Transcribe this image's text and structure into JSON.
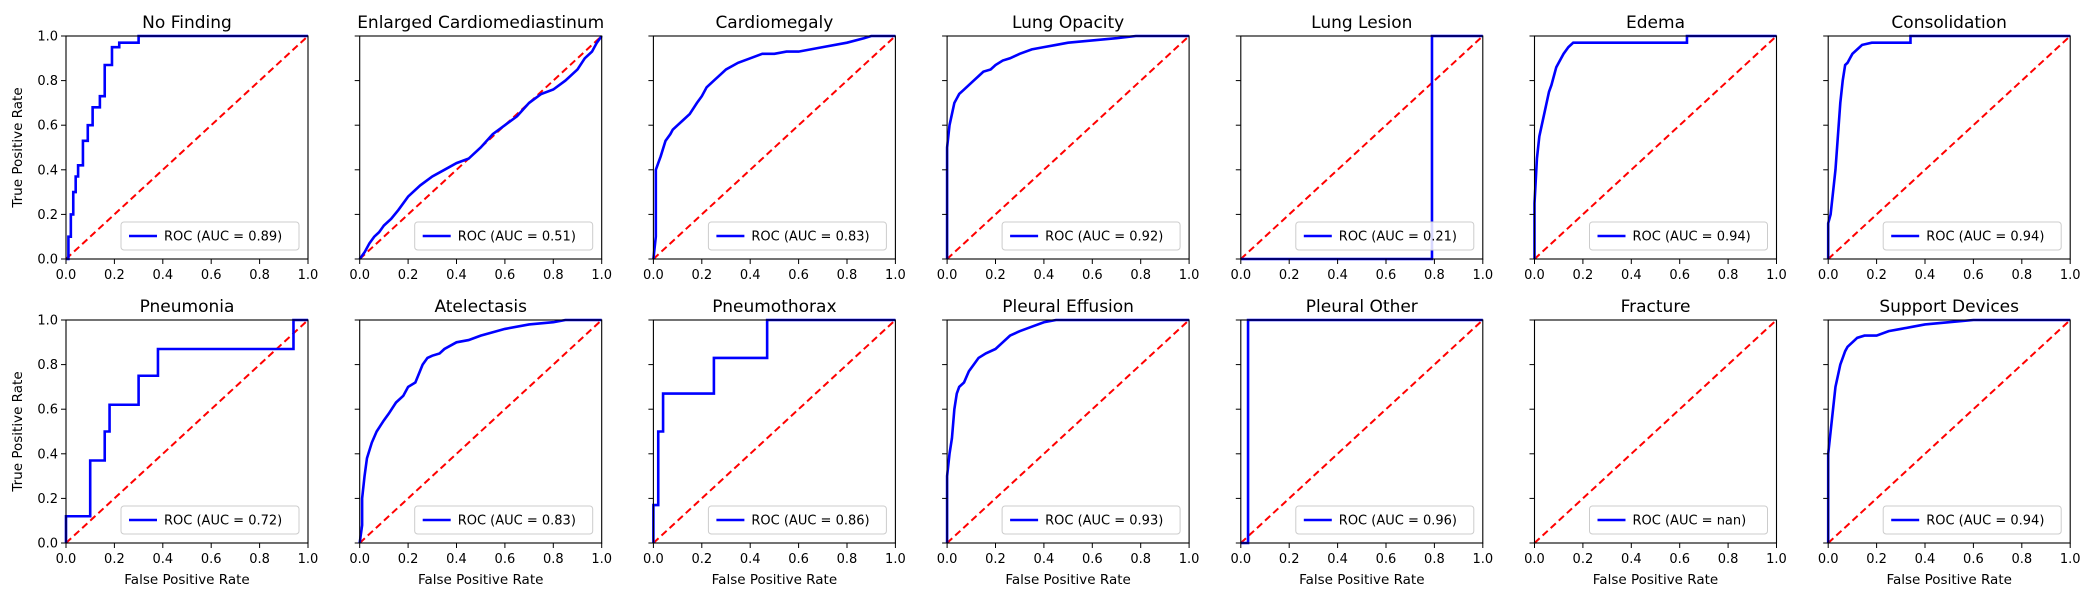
{
  "figure": {
    "xlabel": "False Positive Rate",
    "ylabel": "True Positive Rate",
    "x_ticks": [
      "0.0",
      "0.2",
      "0.4",
      "0.6",
      "0.8",
      "1.0"
    ],
    "y_ticks": [
      "0.0",
      "0.2",
      "0.4",
      "0.6",
      "0.8",
      "1.0"
    ],
    "colors": {
      "roc": "#0000ff",
      "chance": "#ff0000",
      "axes": "#000000"
    }
  },
  "chart_data": [
    {
      "type": "line",
      "title": "No Finding",
      "legend": "ROC (AUC = 0.89)",
      "xlim": [
        0,
        1
      ],
      "ylim": [
        0,
        1
      ],
      "grid": false,
      "legend_position": "lower-right",
      "series": [
        {
          "name": "ROC (AUC = 0.89)",
          "x": [
            0,
            0.01,
            0.01,
            0.02,
            0.02,
            0.03,
            0.03,
            0.04,
            0.04,
            0.05,
            0.05,
            0.07,
            0.07,
            0.09,
            0.09,
            0.11,
            0.11,
            0.14,
            0.14,
            0.16,
            0.16,
            0.19,
            0.19,
            0.22,
            0.22,
            0.3,
            0.3,
            1
          ],
          "y": [
            0,
            0,
            0.1,
            0.1,
            0.2,
            0.2,
            0.3,
            0.3,
            0.37,
            0.37,
            0.42,
            0.42,
            0.53,
            0.53,
            0.6,
            0.6,
            0.68,
            0.68,
            0.73,
            0.73,
            0.87,
            0.87,
            0.95,
            0.95,
            0.97,
            0.97,
            1,
            1
          ]
        },
        {
          "name": "chance",
          "x": [
            0,
            1
          ],
          "y": [
            0,
            1
          ]
        }
      ]
    },
    {
      "type": "line",
      "title": "Enlarged Cardiomediastinum",
      "legend": "ROC (AUC = 0.51)",
      "xlim": [
        0,
        1
      ],
      "ylim": [
        0,
        1
      ],
      "grid": false,
      "legend_position": "lower-right",
      "series": [
        {
          "name": "ROC (AUC = 0.51)",
          "x": [
            0,
            0.02,
            0.04,
            0.06,
            0.08,
            0.1,
            0.13,
            0.16,
            0.2,
            0.25,
            0.3,
            0.35,
            0.4,
            0.45,
            0.5,
            0.55,
            0.6,
            0.65,
            0.7,
            0.75,
            0.8,
            0.85,
            0.9,
            0.93,
            0.96,
            0.98,
            1
          ],
          "y": [
            0,
            0.03,
            0.07,
            0.1,
            0.12,
            0.15,
            0.18,
            0.22,
            0.28,
            0.33,
            0.37,
            0.4,
            0.43,
            0.45,
            0.5,
            0.56,
            0.6,
            0.64,
            0.7,
            0.74,
            0.76,
            0.8,
            0.85,
            0.9,
            0.93,
            0.97,
            1
          ]
        },
        {
          "name": "chance",
          "x": [
            0,
            1
          ],
          "y": [
            0,
            1
          ]
        }
      ]
    },
    {
      "type": "line",
      "title": "Cardiomegaly",
      "legend": "ROC (AUC = 0.83)",
      "xlim": [
        0,
        1
      ],
      "ylim": [
        0,
        1
      ],
      "grid": false,
      "legend_position": "lower-right",
      "series": [
        {
          "name": "ROC (AUC = 0.83)",
          "x": [
            0,
            0.01,
            0.01,
            0.02,
            0.03,
            0.05,
            0.07,
            0.08,
            0.1,
            0.12,
            0.15,
            0.18,
            0.2,
            0.22,
            0.25,
            0.28,
            0.3,
            0.35,
            0.4,
            0.45,
            0.5,
            0.55,
            0.6,
            0.7,
            0.8,
            0.87,
            0.9,
            1
          ],
          "y": [
            0,
            0.1,
            0.4,
            0.43,
            0.46,
            0.53,
            0.56,
            0.58,
            0.6,
            0.62,
            0.65,
            0.7,
            0.73,
            0.77,
            0.8,
            0.83,
            0.85,
            0.88,
            0.9,
            0.92,
            0.92,
            0.93,
            0.93,
            0.95,
            0.97,
            0.99,
            1,
            1
          ]
        },
        {
          "name": "chance",
          "x": [
            0,
            1
          ],
          "y": [
            0,
            1
          ]
        }
      ]
    },
    {
      "type": "line",
      "title": "Lung Opacity",
      "legend": "ROC (AUC = 0.92)",
      "xlim": [
        0,
        1
      ],
      "ylim": [
        0,
        1
      ],
      "grid": false,
      "legend_position": "lower-right",
      "series": [
        {
          "name": "ROC (AUC = 0.92)",
          "x": [
            0,
            0,
            0.01,
            0.02,
            0.03,
            0.04,
            0.05,
            0.07,
            0.09,
            0.11,
            0.13,
            0.15,
            0.18,
            0.2,
            0.23,
            0.26,
            0.3,
            0.35,
            0.4,
            0.45,
            0.5,
            0.6,
            0.7,
            0.78,
            1
          ],
          "y": [
            0,
            0.5,
            0.6,
            0.65,
            0.7,
            0.72,
            0.74,
            0.76,
            0.78,
            0.8,
            0.82,
            0.84,
            0.85,
            0.87,
            0.89,
            0.9,
            0.92,
            0.94,
            0.95,
            0.96,
            0.97,
            0.98,
            0.99,
            1,
            1
          ]
        },
        {
          "name": "chance",
          "x": [
            0,
            1
          ],
          "y": [
            0,
            1
          ]
        }
      ]
    },
    {
      "type": "line",
      "title": "Lung Lesion",
      "legend": "ROC (AUC = 0.21)",
      "xlim": [
        0,
        1
      ],
      "ylim": [
        0,
        1
      ],
      "grid": false,
      "legend_position": "lower-right",
      "series": [
        {
          "name": "ROC (AUC = 0.21)",
          "x": [
            0,
            0.79,
            0.79,
            1
          ],
          "y": [
            0,
            0,
            1,
            1
          ]
        },
        {
          "name": "chance",
          "x": [
            0,
            1
          ],
          "y": [
            0,
            1
          ]
        }
      ]
    },
    {
      "type": "line",
      "title": "Edema",
      "legend": "ROC (AUC = 0.94)",
      "xlim": [
        0,
        1
      ],
      "ylim": [
        0,
        1
      ],
      "grid": false,
      "legend_position": "lower-right",
      "series": [
        {
          "name": "ROC (AUC = 0.94)",
          "x": [
            0,
            0,
            0.01,
            0.02,
            0.03,
            0.04,
            0.05,
            0.06,
            0.07,
            0.08,
            0.09,
            0.1,
            0.12,
            0.14,
            0.16,
            0.2,
            0.3,
            0.4,
            0.63,
            0.63,
            1
          ],
          "y": [
            0,
            0.25,
            0.45,
            0.55,
            0.6,
            0.65,
            0.7,
            0.75,
            0.78,
            0.82,
            0.86,
            0.88,
            0.92,
            0.95,
            0.97,
            0.97,
            0.97,
            0.97,
            0.97,
            1,
            1
          ]
        },
        {
          "name": "chance",
          "x": [
            0,
            1
          ],
          "y": [
            0,
            1
          ]
        }
      ]
    },
    {
      "type": "line",
      "title": "Consolidation",
      "legend": "ROC (AUC = 0.94)",
      "xlim": [
        0,
        1
      ],
      "ylim": [
        0,
        1
      ],
      "grid": false,
      "legend_position": "lower-right",
      "series": [
        {
          "name": "ROC (AUC = 0.94)",
          "x": [
            0,
            0,
            0.01,
            0.02,
            0.03,
            0.04,
            0.05,
            0.06,
            0.07,
            0.08,
            0.09,
            0.1,
            0.12,
            0.14,
            0.18,
            0.22,
            0.3,
            0.34,
            0.34,
            1
          ],
          "y": [
            0,
            0.16,
            0.2,
            0.3,
            0.4,
            0.55,
            0.7,
            0.8,
            0.87,
            0.88,
            0.9,
            0.92,
            0.94,
            0.96,
            0.97,
            0.97,
            0.97,
            0.97,
            1,
            1
          ]
        },
        {
          "name": "chance",
          "x": [
            0,
            1
          ],
          "y": [
            0,
            1
          ]
        }
      ]
    },
    {
      "type": "line",
      "title": "Pneumonia",
      "legend": "ROC (AUC = 0.72)",
      "xlim": [
        0,
        1
      ],
      "ylim": [
        0,
        1
      ],
      "grid": false,
      "legend_position": "lower-right",
      "series": [
        {
          "name": "ROC (AUC = 0.72)",
          "x": [
            0,
            0,
            0.1,
            0.1,
            0.16,
            0.16,
            0.18,
            0.18,
            0.3,
            0.3,
            0.38,
            0.38,
            0.94,
            0.94,
            1
          ],
          "y": [
            0,
            0.12,
            0.12,
            0.37,
            0.37,
            0.5,
            0.5,
            0.62,
            0.62,
            0.75,
            0.75,
            0.87,
            0.87,
            1,
            1
          ]
        },
        {
          "name": "chance",
          "x": [
            0,
            1
          ],
          "y": [
            0,
            1
          ]
        }
      ]
    },
    {
      "type": "line",
      "title": "Atelectasis",
      "legend": "ROC (AUC = 0.83)",
      "xlim": [
        0,
        1
      ],
      "ylim": [
        0,
        1
      ],
      "grid": false,
      "legend_position": "lower-right",
      "series": [
        {
          "name": "ROC (AUC = 0.83)",
          "x": [
            0,
            0.01,
            0.01,
            0.02,
            0.03,
            0.05,
            0.07,
            0.1,
            0.12,
            0.15,
            0.18,
            0.2,
            0.23,
            0.26,
            0.28,
            0.3,
            0.33,
            0.35,
            0.4,
            0.45,
            0.5,
            0.6,
            0.7,
            0.8,
            0.85,
            1
          ],
          "y": [
            0,
            0.08,
            0.2,
            0.3,
            0.38,
            0.45,
            0.5,
            0.55,
            0.58,
            0.63,
            0.66,
            0.7,
            0.72,
            0.8,
            0.83,
            0.84,
            0.85,
            0.87,
            0.9,
            0.91,
            0.93,
            0.96,
            0.98,
            0.99,
            1,
            1
          ]
        },
        {
          "name": "chance",
          "x": [
            0,
            1
          ],
          "y": [
            0,
            1
          ]
        }
      ]
    },
    {
      "type": "line",
      "title": "Pneumothorax",
      "legend": "ROC (AUC = 0.86)",
      "xlim": [
        0,
        1
      ],
      "ylim": [
        0,
        1
      ],
      "grid": false,
      "legend_position": "lower-right",
      "series": [
        {
          "name": "ROC (AUC = 0.86)",
          "x": [
            0,
            0,
            0.02,
            0.02,
            0.04,
            0.04,
            0.25,
            0.25,
            0.47,
            0.47,
            1
          ],
          "y": [
            0,
            0.17,
            0.17,
            0.5,
            0.5,
            0.67,
            0.67,
            0.83,
            0.83,
            1,
            1
          ]
        },
        {
          "name": "chance",
          "x": [
            0,
            1
          ],
          "y": [
            0,
            1
          ]
        }
      ]
    },
    {
      "type": "line",
      "title": "Pleural Effusion",
      "legend": "ROC (AUC = 0.93)",
      "xlim": [
        0,
        1
      ],
      "ylim": [
        0,
        1
      ],
      "grid": false,
      "legend_position": "lower-right",
      "series": [
        {
          "name": "ROC (AUC = 0.93)",
          "x": [
            0,
            0,
            0.01,
            0.02,
            0.03,
            0.04,
            0.05,
            0.07,
            0.09,
            0.11,
            0.13,
            0.16,
            0.2,
            0.23,
            0.26,
            0.3,
            0.35,
            0.4,
            0.45,
            1
          ],
          "y": [
            0,
            0.3,
            0.4,
            0.47,
            0.6,
            0.67,
            0.7,
            0.72,
            0.77,
            0.8,
            0.83,
            0.85,
            0.87,
            0.9,
            0.93,
            0.95,
            0.97,
            0.99,
            1,
            1
          ]
        },
        {
          "name": "chance",
          "x": [
            0,
            1
          ],
          "y": [
            0,
            1
          ]
        }
      ]
    },
    {
      "type": "line",
      "title": "Pleural Other",
      "legend": "ROC (AUC = 0.96)",
      "xlim": [
        0,
        1
      ],
      "ylim": [
        0,
        1
      ],
      "grid": false,
      "legend_position": "lower-right",
      "series": [
        {
          "name": "ROC (AUC = 0.96)",
          "x": [
            0,
            0.03,
            0.03,
            1
          ],
          "y": [
            0,
            0,
            1,
            1
          ]
        },
        {
          "name": "chance",
          "x": [
            0,
            1
          ],
          "y": [
            0,
            1
          ]
        }
      ]
    },
    {
      "type": "line",
      "title": "Fracture",
      "legend": "ROC (AUC = nan)",
      "xlim": [
        0,
        1
      ],
      "ylim": [
        0,
        1
      ],
      "grid": false,
      "legend_position": "lower-right",
      "series": [
        {
          "name": "ROC (AUC = nan)",
          "x": [],
          "y": []
        },
        {
          "name": "chance",
          "x": [
            0,
            1
          ],
          "y": [
            0,
            1
          ]
        }
      ]
    },
    {
      "type": "line",
      "title": "Support Devices",
      "legend": "ROC (AUC = 0.94)",
      "xlim": [
        0,
        1
      ],
      "ylim": [
        0,
        1
      ],
      "grid": false,
      "legend_position": "lower-right",
      "series": [
        {
          "name": "ROC (AUC = 0.94)",
          "x": [
            0,
            0,
            0.01,
            0.02,
            0.03,
            0.04,
            0.05,
            0.06,
            0.07,
            0.08,
            0.1,
            0.12,
            0.15,
            0.2,
            0.25,
            0.3,
            0.35,
            0.4,
            0.5,
            0.6,
            0.7,
            1
          ],
          "y": [
            0,
            0.4,
            0.5,
            0.6,
            0.7,
            0.75,
            0.8,
            0.83,
            0.86,
            0.88,
            0.9,
            0.92,
            0.93,
            0.93,
            0.95,
            0.96,
            0.97,
            0.98,
            0.99,
            1,
            1,
            1
          ]
        },
        {
          "name": "chance",
          "x": [
            0,
            1
          ],
          "y": [
            0,
            1
          ]
        }
      ]
    }
  ]
}
